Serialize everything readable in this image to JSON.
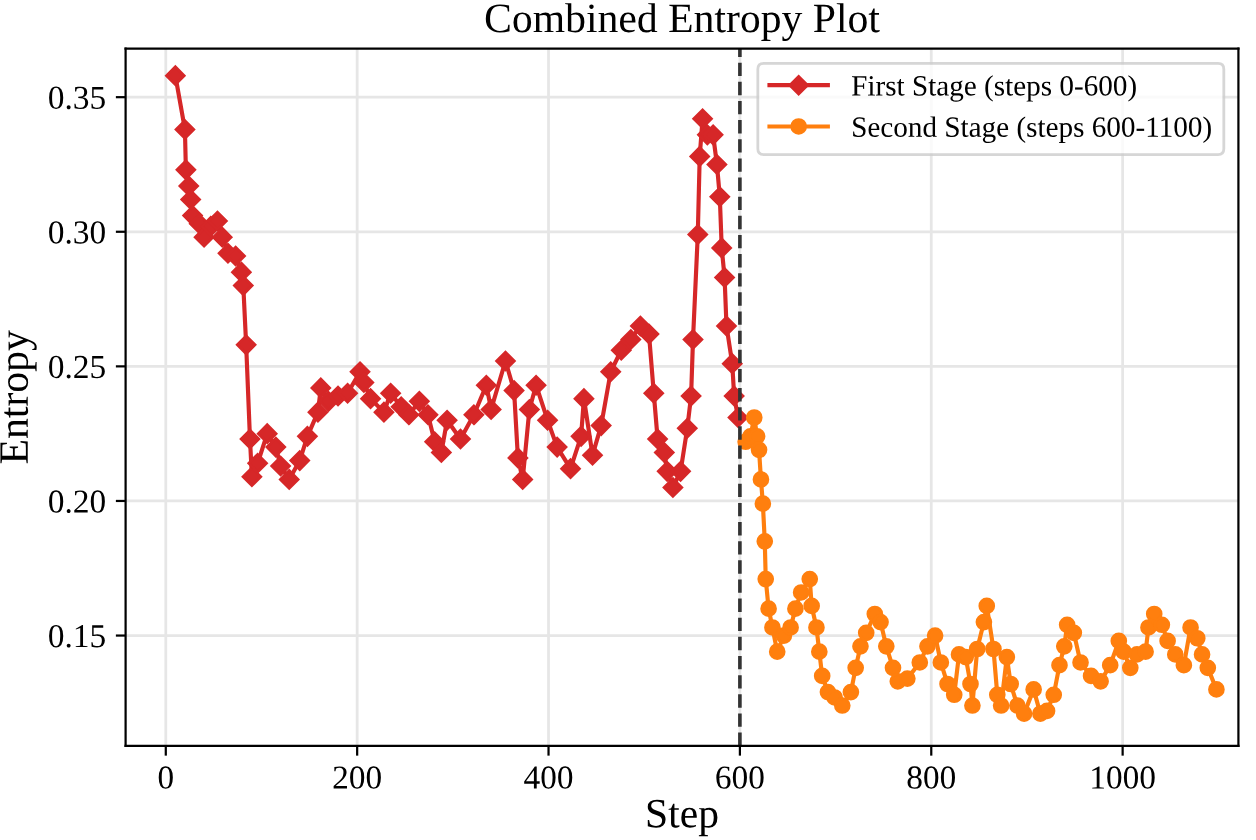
{
  "chart_data": {
    "type": "line",
    "title": "Combined Entropy Plot",
    "xlabel": "Step",
    "ylabel": "Entropy",
    "xlim": [
      -42,
      1121
    ],
    "ylim": [
      0.109,
      0.368
    ],
    "xticks": [
      0,
      200,
      400,
      600,
      800,
      1000
    ],
    "yticks": [
      0.15,
      {
        "value": 0.2,
        "label": "0.20"
      },
      0.25,
      {
        "value": 0.3,
        "label": "0.30"
      },
      0.35
    ],
    "grid": true,
    "legend": "top right",
    "ref_lines": [
      {
        "axis": "x",
        "value": 600,
        "color": "#333333",
        "line_style": "dashed"
      }
    ],
    "series": [
      {
        "name": "First Stage (steps 0-600)",
        "color": "#d62728",
        "marker": "diamond",
        "x": [
          10,
          20,
          21,
          24,
          26,
          28,
          35,
          40,
          47,
          54,
          59,
          65,
          73,
          79,
          81,
          84,
          88,
          90,
          96,
          106,
          115,
          120,
          129,
          140,
          148,
          159,
          162,
          170,
          180,
          190,
          203,
          207,
          214,
          228,
          235,
          246,
          254,
          265,
          274,
          281,
          288,
          294,
          308,
          322,
          335,
          340,
          355,
          364,
          368,
          373,
          380,
          387,
          399,
          409,
          423,
          434,
          437,
          446,
          455,
          465,
          476,
          486,
          496,
          505,
          510,
          514,
          521,
          524,
          530,
          538,
          545,
          549,
          551,
          556,
          558,
          561,
          566,
          572,
          576,
          579,
          581,
          584,
          586,
          592,
          594,
          598
        ],
        "values": [
          0.358,
          0.338,
          0.323,
          0.317,
          0.312,
          0.306,
          0.303,
          0.298,
          0.302,
          0.304,
          0.298,
          0.292,
          0.291,
          0.285,
          0.28,
          0.258,
          0.223,
          0.209,
          0.214,
          0.225,
          0.22,
          0.213,
          0.208,
          0.215,
          0.224,
          0.233,
          0.242,
          0.237,
          0.239,
          0.24,
          0.248,
          0.244,
          0.238,
          0.233,
          0.24,
          0.235,
          0.232,
          0.237,
          0.232,
          0.222,
          0.218,
          0.23,
          0.223,
          0.232,
          0.243,
          0.234,
          0.252,
          0.241,
          0.216,
          0.208,
          0.234,
          0.243,
          0.23,
          0.22,
          0.212,
          0.224,
          0.238,
          0.217,
          0.228,
          0.248,
          0.256,
          0.26,
          0.265,
          0.262,
          0.24,
          0.223,
          0.218,
          0.211,
          0.205,
          0.211,
          0.227,
          0.239,
          0.26,
          0.299,
          0.328,
          0.342,
          0.336,
          0.336,
          0.325,
          0.313,
          0.294,
          0.283,
          0.265,
          0.251,
          0.239,
          0.231
        ]
      },
      {
        "name": "Second Stage (steps 600-1100)",
        "color": "#ff7f0e",
        "marker": "circle",
        "x": [
          606,
          611,
          615,
          618,
          620,
          622,
          624,
          626,
          627,
          630,
          634,
          639,
          646,
          653,
          658,
          664,
          673,
          675,
          680,
          683,
          686,
          692,
          699,
          707,
          716,
          721,
          726,
          732,
          741,
          747,
          753,
          760,
          765,
          775,
          788,
          796,
          804,
          810,
          817,
          824,
          829,
          836,
          841,
          843,
          848,
          855,
          858,
          865,
          869,
          873,
          879,
          883,
          890,
          897,
          907,
          914,
          921,
          928,
          934,
          939,
          942,
          949,
          956,
          967,
          977,
          987,
          996,
          1001,
          1008,
          1015,
          1024,
          1027,
          1033,
          1041,
          1047,
          1055,
          1064,
          1071,
          1078,
          1083,
          1089,
          1098
        ],
        "values": [
          0.222,
          0.224,
          0.231,
          0.224,
          0.219,
          0.208,
          0.199,
          0.185,
          0.171,
          0.16,
          0.153,
          0.144,
          0.15,
          0.153,
          0.16,
          0.166,
          0.171,
          0.161,
          0.153,
          0.144,
          0.135,
          0.129,
          0.127,
          0.124,
          0.129,
          0.138,
          0.146,
          0.151,
          0.158,
          0.155,
          0.146,
          0.138,
          0.133,
          0.134,
          0.14,
          0.146,
          0.15,
          0.14,
          0.132,
          0.128,
          0.143,
          0.142,
          0.132,
          0.124,
          0.145,
          0.155,
          0.161,
          0.145,
          0.128,
          0.124,
          0.142,
          0.132,
          0.124,
          0.121,
          0.13,
          0.121,
          0.122,
          0.128,
          0.139,
          0.146,
          0.154,
          0.151,
          0.14,
          0.135,
          0.133,
          0.139,
          0.148,
          0.144,
          0.138,
          0.143,
          0.144,
          0.153,
          0.158,
          0.154,
          0.148,
          0.143,
          0.139,
          0.153,
          0.149,
          0.143,
          0.138,
          0.13
        ]
      }
    ]
  }
}
